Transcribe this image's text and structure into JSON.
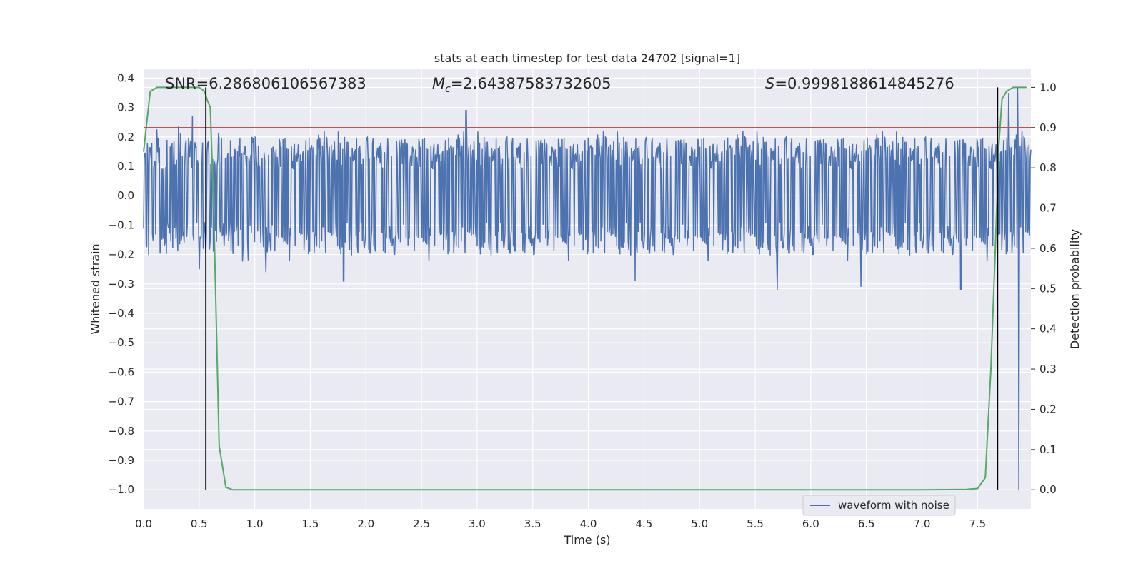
{
  "chart_data": {
    "type": "line",
    "title": "stats at each timestep for test data 24702 [signal=1]",
    "xlabel": "Time (s)",
    "ylabel": "Whitened strain",
    "y2label": "Detection probability",
    "xlim": [
      0.0,
      7.98
    ],
    "ylim": [
      -1.065,
      0.43
    ],
    "y2lim": [
      -0.0475,
      1.045
    ],
    "x_ticks": [
      0.0,
      0.5,
      1.0,
      1.5,
      2.0,
      2.5,
      3.0,
      3.5,
      4.0,
      4.5,
      5.0,
      5.5,
      6.0,
      6.5,
      7.0,
      7.5
    ],
    "x_tick_labels": [
      "0.0",
      "0.5",
      "1.0",
      "1.5",
      "2.0",
      "2.5",
      "3.0",
      "3.5",
      "4.0",
      "4.5",
      "5.0",
      "5.5",
      "6.0",
      "6.5",
      "7.0",
      "7.5"
    ],
    "y_ticks": [
      0.4,
      0.3,
      0.2,
      0.1,
      0.0,
      -0.1,
      -0.2,
      -0.3,
      -0.4,
      -0.5,
      -0.6,
      -0.7,
      -0.8,
      -0.9,
      -1.0
    ],
    "y_tick_labels": [
      "0.4",
      "0.3",
      "0.2",
      "0.1",
      "0.0",
      "−0.1",
      "−0.2",
      "−0.3",
      "−0.4",
      "−0.5",
      "−0.6",
      "−0.7",
      "−0.8",
      "−0.9",
      "−1.0"
    ],
    "y2_ticks": [
      1.0,
      0.9,
      0.8,
      0.7,
      0.6,
      0.5,
      0.4,
      0.3,
      0.2,
      0.1,
      0.0
    ],
    "y2_tick_labels": [
      "1.0",
      "0.9",
      "0.8",
      "0.7",
      "0.6",
      "0.5",
      "0.4",
      "0.3",
      "0.2",
      "0.1",
      "0.0"
    ],
    "grid": true,
    "legend_position": "bottom-right",
    "annotations": {
      "snr": {
        "label": "SNR=6.286806106567383",
        "x": 0.2
      },
      "mc": {
        "prefix": "M",
        "subscript": "c",
        "rest": "=2.64387583732605",
        "x": 2.6
      },
      "s": {
        "prefix": "S",
        "rest": "=0.9998188614845276",
        "x": 5.6
      }
    },
    "threshold": {
      "y2": 0.9,
      "color": "#c44e52"
    },
    "vlines": [
      {
        "x": 0.56,
        "y2_range": [
          0.0,
          1.0
        ],
        "color": "#000000"
      },
      {
        "x": 7.68,
        "y2_range": [
          0.0,
          1.0
        ],
        "color": "#000000"
      }
    ],
    "series": [
      {
        "name": "waveform with noise",
        "axis": "left",
        "color": "#4c72b0",
        "x_range": [
          0.0,
          7.98
        ],
        "points": 1400,
        "noise_envelope": [
          -0.2,
          0.2
        ],
        "peaks": [
          {
            "x": 0.44,
            "y": 0.27
          },
          {
            "x": 0.5,
            "y": -0.25
          },
          {
            "x": 1.1,
            "y": -0.26
          },
          {
            "x": 1.8,
            "y": -0.29
          },
          {
            "x": 2.9,
            "y": 0.29
          },
          {
            "x": 4.42,
            "y": -0.29
          },
          {
            "x": 5.7,
            "y": -0.32
          },
          {
            "x": 6.45,
            "y": -0.31
          },
          {
            "x": 7.35,
            "y": -0.32
          },
          {
            "x": 7.78,
            "y": 0.35
          },
          {
            "x": 7.86,
            "y": 0.37
          },
          {
            "x": 7.87,
            "y": -1.0
          }
        ]
      },
      {
        "name": "",
        "axis": "right",
        "color": "#55a868",
        "x": [
          0.0,
          0.06,
          0.12,
          0.5,
          0.55,
          0.57,
          0.6,
          0.63,
          0.68,
          0.74,
          0.8,
          1.0,
          7.0,
          7.4,
          7.5,
          7.57,
          7.62,
          7.66,
          7.69,
          7.72,
          7.76,
          7.82,
          7.86,
          7.94
        ],
        "y": [
          0.84,
          0.99,
          1.0,
          1.0,
          0.99,
          0.97,
          0.95,
          0.7,
          0.11,
          0.006,
          0.0,
          0.0,
          0.0,
          0.001,
          0.003,
          0.03,
          0.3,
          0.6,
          0.85,
          0.97,
          0.99,
          1.0,
          1.0,
          1.0
        ]
      }
    ]
  }
}
